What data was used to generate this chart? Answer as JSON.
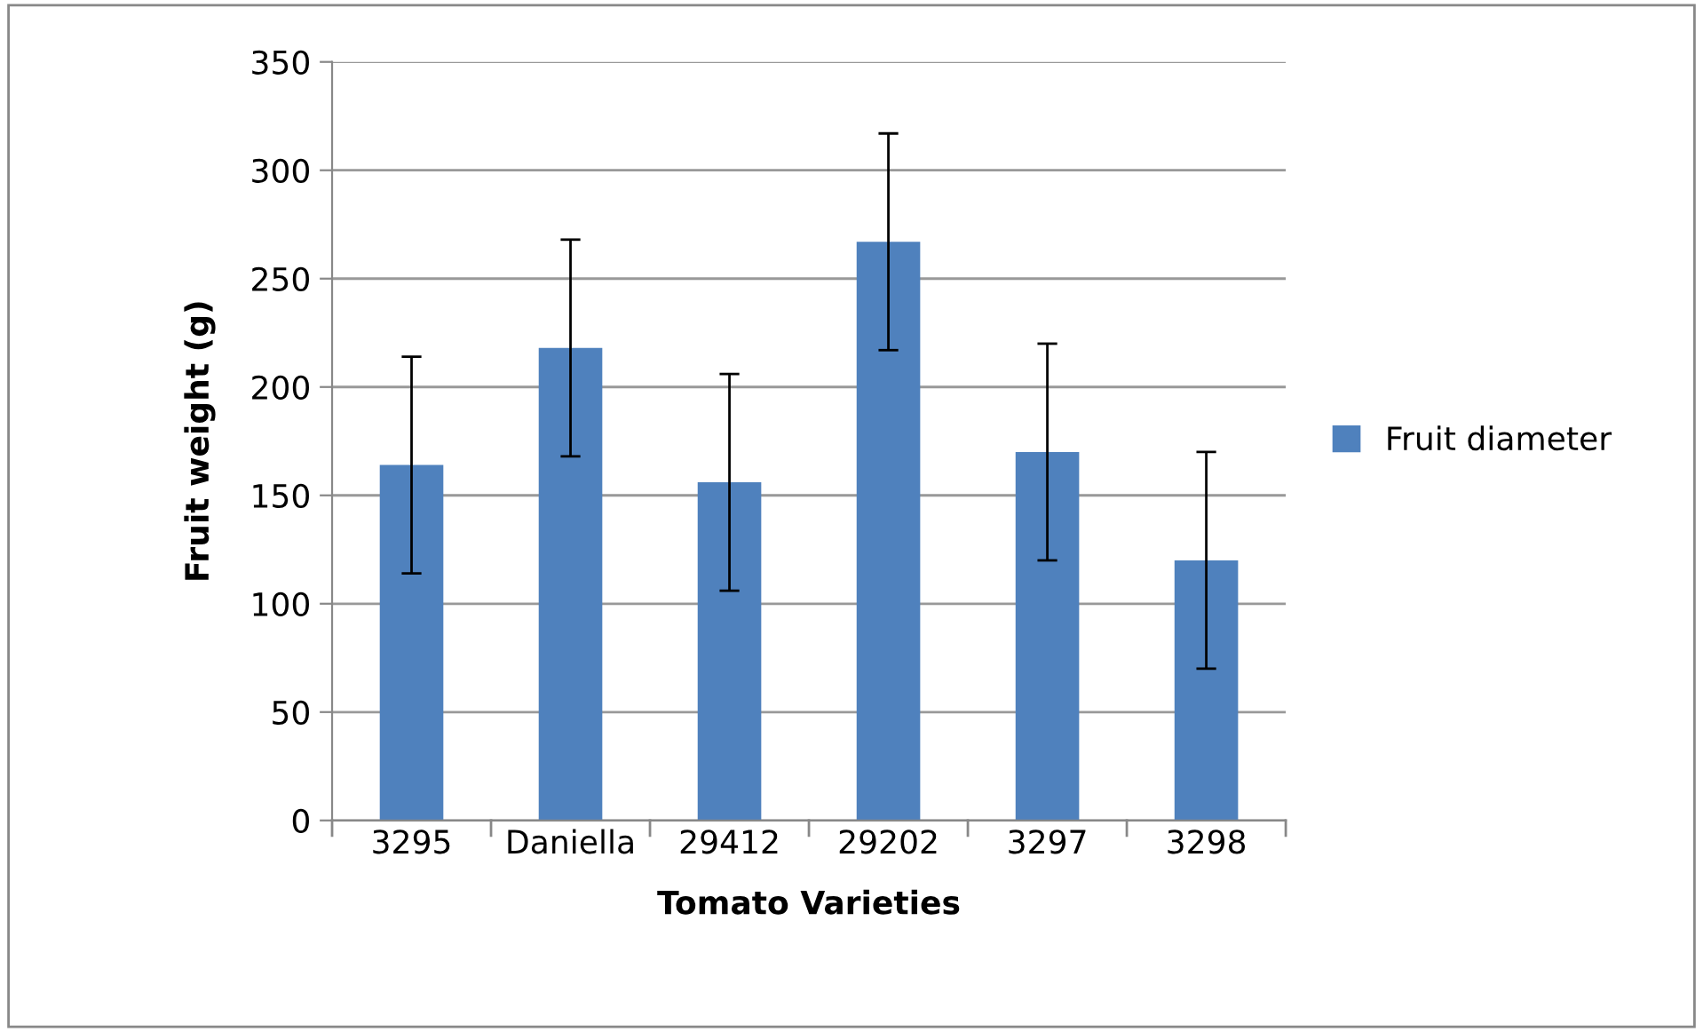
{
  "chart_data": {
    "type": "bar",
    "xlabel": "Tomato Varieties",
    "ylabel": "Fruit weight (g)",
    "categories": [
      "3295",
      "Daniella",
      "29412",
      "29202",
      "3297",
      "3298"
    ],
    "series": [
      {
        "name": "Fruit diameter",
        "color": "#4f81bd",
        "values": [
          164,
          218,
          156,
          267,
          170,
          120
        ],
        "errors": [
          50,
          50,
          50,
          50,
          50,
          50
        ]
      }
    ],
    "ylim": [
      0,
      350
    ],
    "yticks": [
      0,
      50,
      100,
      150,
      200,
      250,
      300,
      350
    ],
    "grid": "y",
    "legend": "right"
  }
}
